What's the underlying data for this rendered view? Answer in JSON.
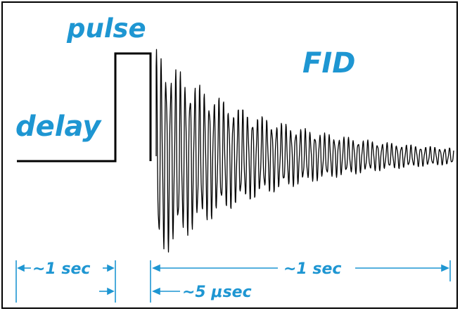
{
  "labels": {
    "pulse": "pulse",
    "delay": "delay",
    "fid": "FID",
    "delay_duration": "~1 sec",
    "fid_duration": "~1 sec",
    "pulse_duration": "~5 μsec"
  },
  "colors": {
    "accent": "#1e96d2",
    "trace": "#000000",
    "frame": "#000000",
    "background": "#ffffff"
  }
}
